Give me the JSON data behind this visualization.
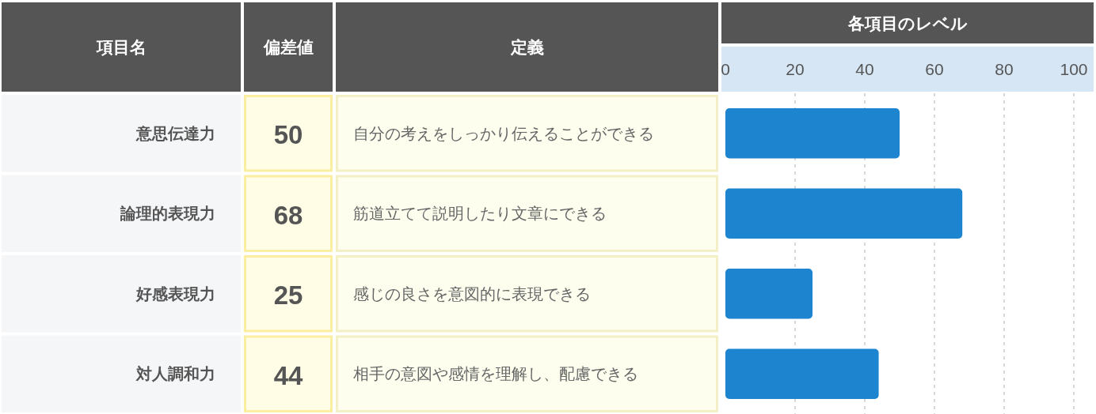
{
  "chart_data": {
    "type": "bar",
    "orientation": "horizontal",
    "title": "各項目のレベル",
    "ylabel": "項目名",
    "categories": [
      "意思伝達力",
      "論理的表現力",
      "好感表現力",
      "対人調和力"
    ],
    "values": [
      50,
      68,
      25,
      44
    ],
    "color": "#1d84d0",
    "xlim": [
      0,
      100
    ],
    "x2lim": [
      0,
      100
    ],
    "x2ticks": [
      0,
      20,
      40,
      60,
      80,
      100
    ],
    "grid": "x",
    "data_labels": true,
    "annotations": [
      "偏差値",
      "定義",
      "自分の考えをしっかり伝えることができる",
      "筋道立てて説明したり文章にできる",
      "感じの良さを意図的に表現できる",
      "相手の意図や感情を理解し、配慮できる"
    ]
  }
}
